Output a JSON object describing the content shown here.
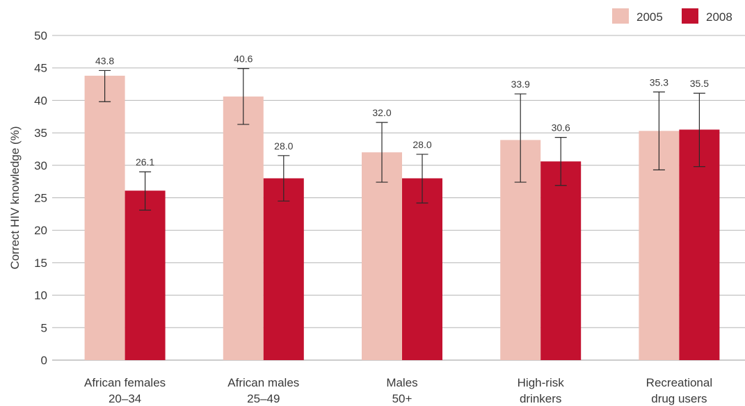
{
  "chart_data": {
    "type": "bar",
    "title": "",
    "xlabel": "",
    "ylabel": "Correct HIV knowledge (%)",
    "ylim": [
      0,
      50
    ],
    "yticks": [
      0,
      5,
      10,
      15,
      20,
      25,
      30,
      35,
      40,
      45,
      50
    ],
    "grid": true,
    "legend_position": "top-right",
    "categories": [
      [
        "African females",
        "20–34"
      ],
      [
        "African males",
        "25–49"
      ],
      [
        "Males",
        "50+"
      ],
      [
        "High-risk",
        "drinkers"
      ],
      [
        "Recreational",
        "drug users"
      ]
    ],
    "series": [
      {
        "name": "2005",
        "color": "#efbfb5",
        "values": [
          43.8,
          40.6,
          32.0,
          33.9,
          35.3
        ],
        "labels": [
          "43.8",
          "40.6",
          "32.0",
          "33.9",
          "35.3"
        ],
        "error_low": [
          39.8,
          36.3,
          27.4,
          27.4,
          29.3
        ],
        "error_high": [
          44.6,
          44.9,
          36.6,
          41.0,
          41.3
        ]
      },
      {
        "name": "2008",
        "color": "#c3112f",
        "values": [
          26.1,
          28.0,
          28.0,
          30.6,
          35.5
        ],
        "labels": [
          "26.1",
          "28.0",
          "28.0",
          "30.6",
          "35.5"
        ],
        "error_low": [
          23.1,
          24.5,
          24.2,
          26.9,
          29.8
        ],
        "error_high": [
          29.0,
          31.5,
          31.7,
          34.3,
          41.1
        ]
      }
    ]
  }
}
